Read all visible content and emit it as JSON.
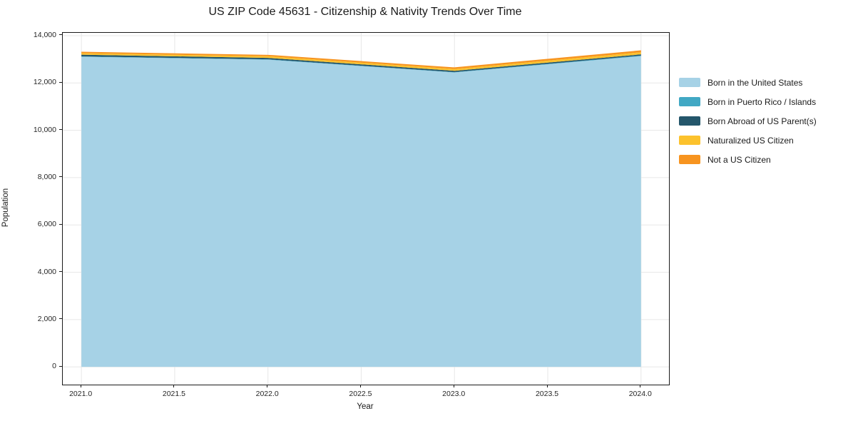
{
  "title": "US ZIP Code 45631 - Citizenship & Nativity Trends Over Time",
  "chart_data": {
    "type": "area",
    "stacked": true,
    "title": "US ZIP Code 45631 - Citizenship & Nativity Trends Over Time",
    "xlabel": "Year",
    "ylabel": "Population",
    "x": [
      2021,
      2022,
      2023,
      2024
    ],
    "series": [
      {
        "name": "Born in the United States",
        "color": "#a6d2e6",
        "values": [
          13110,
          12985,
          12445,
          13135
        ]
      },
      {
        "name": "Born in Puerto Rico / Islands",
        "color": "#41a8c4",
        "values": [
          15,
          15,
          15,
          25
        ]
      },
      {
        "name": "Born Abroad of US Parent(s)",
        "color": "#24566b",
        "values": [
          70,
          60,
          55,
          50
        ]
      },
      {
        "name": "Naturalized US Citizen",
        "color": "#fcc22d",
        "values": [
          65,
          70,
          75,
          90
        ]
      },
      {
        "name": "Not a US Citizen",
        "color": "#f7941f",
        "values": [
          60,
          60,
          70,
          80
        ]
      }
    ],
    "totals": [
      13320,
      13190,
      12660,
      13380
    ],
    "xlim": [
      2020.9,
      2024.15
    ],
    "ylim": [
      -750,
      14120
    ],
    "xticks": [
      {
        "value": 2021.0,
        "label": "2021.0"
      },
      {
        "value": 2021.5,
        "label": "2021.5"
      },
      {
        "value": 2022.0,
        "label": "2022.0"
      },
      {
        "value": 2022.5,
        "label": "2022.5"
      },
      {
        "value": 2023.0,
        "label": "2023.0"
      },
      {
        "value": 2023.5,
        "label": "2023.5"
      },
      {
        "value": 2024.0,
        "label": "2024.0"
      }
    ],
    "yticks": [
      {
        "value": 0,
        "label": "0"
      },
      {
        "value": 2000,
        "label": "2,000"
      },
      {
        "value": 4000,
        "label": "4,000"
      },
      {
        "value": 6000,
        "label": "6,000"
      },
      {
        "value": 8000,
        "label": "8,000"
      },
      {
        "value": 10000,
        "label": "10,000"
      },
      {
        "value": 12000,
        "label": "12,000"
      },
      {
        "value": 14000,
        "label": "14,000"
      }
    ],
    "grid": true,
    "legend_position": "right",
    "colors": {
      "grid": "#e7e7e7",
      "spine": "#1a1a1a",
      "text": "#262626",
      "background": "#ffffff"
    }
  }
}
